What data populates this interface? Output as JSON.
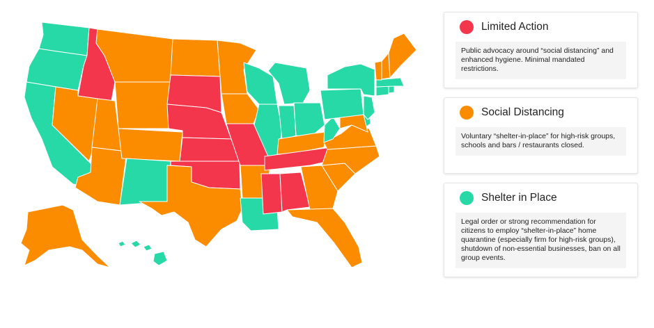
{
  "colors": {
    "limited": "#f4364c",
    "social": "#fb8c00",
    "shelter": "#26d9a6"
  },
  "legend": [
    {
      "key": "limited",
      "title": "Limited Action",
      "description": "Public advocacy around “social distancing” and enhanced hygiene. Minimal mandated restrictions."
    },
    {
      "key": "social",
      "title": "Social Distancing",
      "description": "Voluntary “shelter-in-place” for high-risk groups, schools and bars / restaurants closed."
    },
    {
      "key": "shelter",
      "title": "Shelter in Place",
      "description": "Legal order or strong recommendation for citizens to employ “shelter-in-place” home quarantine (especially firm for high-risk groups), shutdown of non-essential businesses, ban on all group events."
    }
  ],
  "states": [
    {
      "id": "WA",
      "category": "shelter"
    },
    {
      "id": "OR",
      "category": "shelter"
    },
    {
      "id": "CA",
      "category": "shelter"
    },
    {
      "id": "ID",
      "category": "limited"
    },
    {
      "id": "NV",
      "category": "social"
    },
    {
      "id": "MT",
      "category": "social"
    },
    {
      "id": "WY",
      "category": "social"
    },
    {
      "id": "UT",
      "category": "social"
    },
    {
      "id": "AZ",
      "category": "social"
    },
    {
      "id": "CO",
      "category": "social"
    },
    {
      "id": "NM",
      "category": "shelter"
    },
    {
      "id": "ND",
      "category": "social"
    },
    {
      "id": "SD",
      "category": "limited"
    },
    {
      "id": "NE",
      "category": "limited"
    },
    {
      "id": "KS",
      "category": "limited"
    },
    {
      "id": "OK",
      "category": "limited"
    },
    {
      "id": "TX",
      "category": "social"
    },
    {
      "id": "MN",
      "category": "social"
    },
    {
      "id": "IA",
      "category": "social"
    },
    {
      "id": "MO",
      "category": "limited"
    },
    {
      "id": "AR",
      "category": "social"
    },
    {
      "id": "LA",
      "category": "shelter"
    },
    {
      "id": "WI",
      "category": "shelter"
    },
    {
      "id": "IL",
      "category": "shelter"
    },
    {
      "id": "MI",
      "category": "shelter"
    },
    {
      "id": "IN",
      "category": "shelter"
    },
    {
      "id": "OH",
      "category": "shelter"
    },
    {
      "id": "KY",
      "category": "social"
    },
    {
      "id": "TN",
      "category": "limited"
    },
    {
      "id": "MS",
      "category": "limited"
    },
    {
      "id": "AL",
      "category": "limited"
    },
    {
      "id": "GA",
      "category": "social"
    },
    {
      "id": "FL",
      "category": "social"
    },
    {
      "id": "SC",
      "category": "social"
    },
    {
      "id": "NC",
      "category": "social"
    },
    {
      "id": "VA",
      "category": "social"
    },
    {
      "id": "WV",
      "category": "shelter"
    },
    {
      "id": "MD",
      "category": "social"
    },
    {
      "id": "DE",
      "category": "shelter"
    },
    {
      "id": "PA",
      "category": "shelter"
    },
    {
      "id": "NJ",
      "category": "shelter"
    },
    {
      "id": "NY",
      "category": "shelter"
    },
    {
      "id": "CT",
      "category": "shelter"
    },
    {
      "id": "RI",
      "category": "shelter"
    },
    {
      "id": "MA",
      "category": "shelter"
    },
    {
      "id": "VT",
      "category": "social"
    },
    {
      "id": "NH",
      "category": "social"
    },
    {
      "id": "ME",
      "category": "social"
    },
    {
      "id": "AK",
      "category": "social"
    },
    {
      "id": "HI",
      "category": "shelter"
    }
  ]
}
